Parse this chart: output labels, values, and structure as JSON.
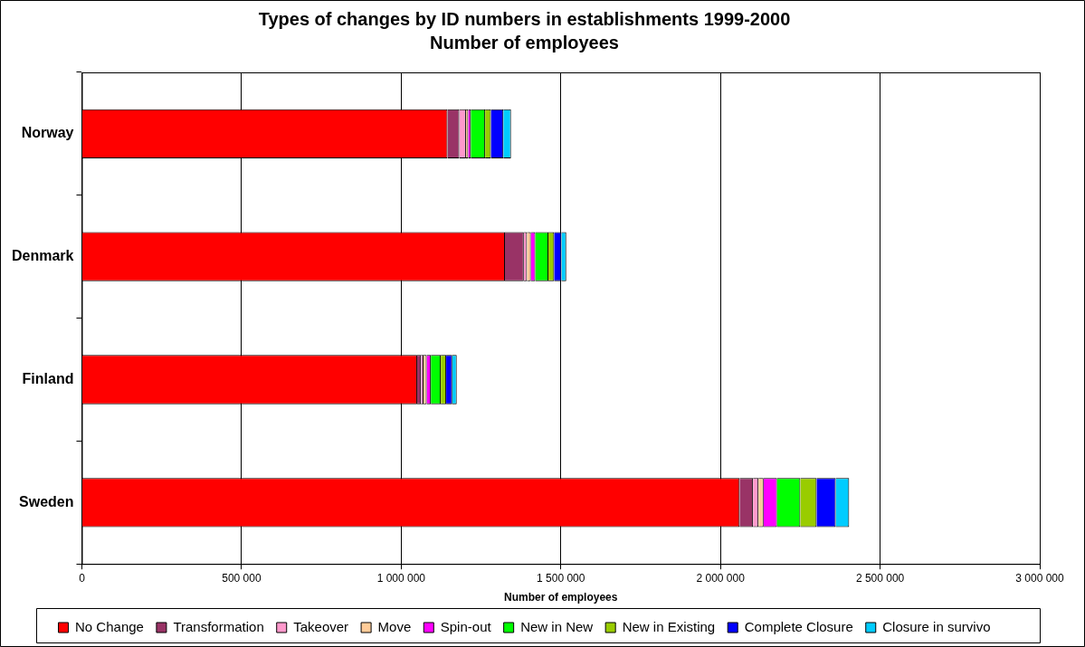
{
  "chart_data": {
    "type": "bar",
    "orientation": "horizontal",
    "stacked": true,
    "title": "Types of changes by ID numbers in establishments 1999-2000",
    "subtitle": "Number of employees",
    "xlabel": "Number of employees",
    "categories": [
      "Norway",
      "Denmark",
      "Finland",
      "Sweden"
    ],
    "series": [
      {
        "name": "No Change",
        "color": "#ff0000",
        "values": [
          1145000,
          1325000,
          1050000,
          2060000
        ]
      },
      {
        "name": "Transformation",
        "color": "#993366",
        "values": [
          37000,
          59000,
          12000,
          42000
        ]
      },
      {
        "name": "Takeover",
        "color": "#ff99cc",
        "values": [
          21000,
          10000,
          8000,
          17000
        ]
      },
      {
        "name": "Move",
        "color": "#ffcc99",
        "values": [
          7000,
          12000,
          10000,
          16000
        ]
      },
      {
        "name": "Spin-out",
        "color": "#ff00ff",
        "values": [
          8000,
          14000,
          13000,
          42000
        ]
      },
      {
        "name": "New in New",
        "color": "#00ff00",
        "values": [
          45000,
          41000,
          31000,
          73000
        ]
      },
      {
        "name": "New in Existing",
        "color": "#99cc00",
        "values": [
          18000,
          18000,
          17000,
          51000
        ]
      },
      {
        "name": "Complete Closure",
        "color": "#0000ff",
        "values": [
          39000,
          23000,
          19000,
          60000
        ]
      },
      {
        "name": "Closure in survivo",
        "color": "#00ccff",
        "values": [
          24000,
          15000,
          14000,
          42000
        ]
      }
    ],
    "xlim": [
      0,
      3000000
    ],
    "xticks": [
      0,
      {
        "value": 500000,
        "label": "500 000"
      },
      {
        "value": 1000000,
        "label": "1 000 000"
      },
      {
        "value": 1500000,
        "label": "1 500 000"
      },
      {
        "value": 2000000,
        "label": "2 000 000"
      },
      {
        "value": 2500000,
        "label": "2 500 000"
      },
      {
        "value": 3000000,
        "label": "3 000 000"
      }
    ],
    "grid": "x",
    "legend": "bottom"
  }
}
